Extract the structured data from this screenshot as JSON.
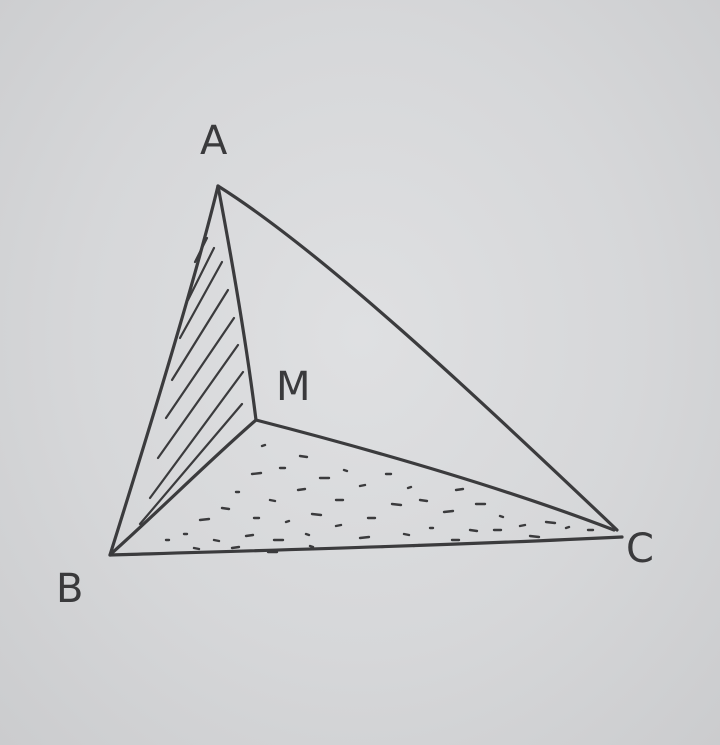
{
  "figure": {
    "kind": "hand-drawn triangle ABC with interior point M joined to each vertex",
    "labels": {
      "A": "A",
      "B": "B",
      "C": "C",
      "M": "M"
    },
    "colors": {
      "paper": "#d8d9db",
      "ink": "#3b3b3d"
    },
    "shading": {
      "AMB": "hatched",
      "BMC": "dotted"
    }
  }
}
